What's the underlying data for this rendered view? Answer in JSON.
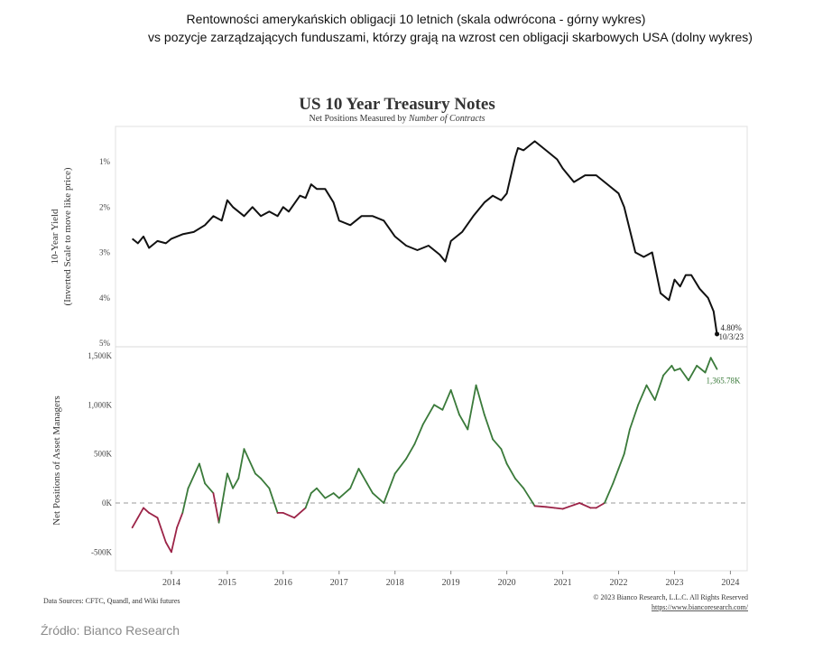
{
  "caption": {
    "line1": "Rentowności amerykańskich obligacji 10 letnich (skala odwrócona - górny wykres)",
    "line2": "vs pozycje zarządzających funduszami, którzy grają na wzrost cen obligacji skarbowych USA (dolny wykres)"
  },
  "source_note": "Źródło: Bianco Research",
  "footer": {
    "data_sources": "Data Sources: CFTC, Quandl, and Wiki futures",
    "copyright": "© 2023 Bianco Research, L.L.C. All Rights Reserved",
    "url": "https://www.biancoresearch.com/"
  },
  "colors": {
    "yield_line": "#111111",
    "positive": "#3a7a3a",
    "negative": "#9c2448",
    "zero_line": "#9a9a9a"
  },
  "chart_data": [
    {
      "type": "line",
      "title": "US 10 Year Treasury Notes",
      "subtitle_prefix": "Net Positions Measured by ",
      "subtitle_emph": "Number of Contracts",
      "ylabel_line1": "10-Year Yield",
      "ylabel_line2": "(Inverted Scale to move like price)",
      "y_inverted": true,
      "ylim": [
        5.0,
        0.5
      ],
      "y_ticks": [
        {
          "v": 1,
          "label": "1%"
        },
        {
          "v": 2,
          "label": "2%"
        },
        {
          "v": 3,
          "label": "3%"
        },
        {
          "v": 4,
          "label": "4%"
        },
        {
          "v": 5,
          "label": "5%"
        }
      ],
      "end_label_value": "4.80%",
      "end_label_date": "10/3/23",
      "x": [
        2013.3,
        2013.4,
        2013.5,
        2013.6,
        2013.75,
        2013.9,
        2014.0,
        2014.2,
        2014.4,
        2014.6,
        2014.75,
        2014.9,
        2015.0,
        2015.1,
        2015.3,
        2015.45,
        2015.6,
        2015.75,
        2015.9,
        2016.0,
        2016.1,
        2016.3,
        2016.4,
        2016.5,
        2016.6,
        2016.75,
        2016.9,
        2017.0,
        2017.2,
        2017.4,
        2017.6,
        2017.8,
        2018.0,
        2018.2,
        2018.4,
        2018.6,
        2018.8,
        2018.9,
        2019.0,
        2019.2,
        2019.4,
        2019.6,
        2019.75,
        2019.9,
        2020.0,
        2020.15,
        2020.2,
        2020.3,
        2020.5,
        2020.6,
        2020.75,
        2020.9,
        2021.0,
        2021.2,
        2021.4,
        2021.6,
        2021.8,
        2022.0,
        2022.1,
        2022.2,
        2022.3,
        2022.45,
        2022.6,
        2022.75,
        2022.9,
        2023.0,
        2023.1,
        2023.2,
        2023.3,
        2023.45,
        2023.6,
        2023.7,
        2023.76
      ],
      "y": [
        2.7,
        2.8,
        2.65,
        2.9,
        2.75,
        2.8,
        2.7,
        2.6,
        2.55,
        2.4,
        2.2,
        2.3,
        1.85,
        2.0,
        2.2,
        2.0,
        2.2,
        2.1,
        2.2,
        2.0,
        2.1,
        1.75,
        1.8,
        1.5,
        1.6,
        1.6,
        1.9,
        2.3,
        2.4,
        2.2,
        2.2,
        2.3,
        2.65,
        2.85,
        2.95,
        2.85,
        3.05,
        3.2,
        2.75,
        2.55,
        2.2,
        1.9,
        1.75,
        1.85,
        1.7,
        0.9,
        0.7,
        0.75,
        0.55,
        0.65,
        0.8,
        0.95,
        1.15,
        1.45,
        1.3,
        1.3,
        1.5,
        1.7,
        2.0,
        2.5,
        3.0,
        3.1,
        3.0,
        3.9,
        4.05,
        3.6,
        3.75,
        3.5,
        3.5,
        3.8,
        4.0,
        4.3,
        4.8
      ]
    },
    {
      "type": "line",
      "ylabel": "Net Positions of Asset Managers",
      "ylim": [
        -700,
        1500
      ],
      "y_ticks": [
        {
          "v": 1500,
          "label": "1,500K"
        },
        {
          "v": 1000,
          "label": "1,000K"
        },
        {
          "v": 500,
          "label": "500K"
        },
        {
          "v": 0,
          "label": "0K"
        },
        {
          "v": -500,
          "label": "-500K"
        }
      ],
      "x_ticks": [
        "2014",
        "2015",
        "2016",
        "2017",
        "2018",
        "2019",
        "2020",
        "2021",
        "2022",
        "2023",
        "2024"
      ],
      "xlim": [
        2013.0,
        2024.3
      ],
      "end_label": "1,365.78K",
      "x": [
        2013.3,
        2013.4,
        2013.5,
        2013.6,
        2013.75,
        2013.9,
        2014.0,
        2014.1,
        2014.2,
        2014.3,
        2014.5,
        2014.6,
        2014.75,
        2014.85,
        2015.0,
        2015.1,
        2015.2,
        2015.3,
        2015.5,
        2015.6,
        2015.75,
        2015.9,
        2016.0,
        2016.2,
        2016.4,
        2016.5,
        2016.6,
        2016.75,
        2016.9,
        2017.0,
        2017.2,
        2017.35,
        2017.5,
        2017.6,
        2017.8,
        2017.9,
        2018.0,
        2018.2,
        2018.35,
        2018.5,
        2018.7,
        2018.85,
        2019.0,
        2019.15,
        2019.3,
        2019.45,
        2019.6,
        2019.75,
        2019.9,
        2020.0,
        2020.15,
        2020.3,
        2020.5,
        2020.7,
        2020.85,
        2021.0,
        2021.1,
        2021.3,
        2021.5,
        2021.6,
        2021.75,
        2021.9,
        2022.0,
        2022.1,
        2022.2,
        2022.35,
        2022.5,
        2022.65,
        2022.8,
        2022.95,
        2023.0,
        2023.1,
        2023.25,
        2023.4,
        2023.55,
        2023.65,
        2023.76
      ],
      "y": [
        -250,
        -150,
        -50,
        -100,
        -150,
        -400,
        -500,
        -250,
        -100,
        150,
        400,
        200,
        100,
        -200,
        300,
        150,
        250,
        550,
        300,
        250,
        150,
        -100,
        -100,
        -150,
        -50,
        100,
        150,
        50,
        100,
        50,
        150,
        350,
        200,
        100,
        0,
        150,
        300,
        450,
        600,
        800,
        1000,
        950,
        1150,
        900,
        750,
        1200,
        900,
        650,
        550,
        400,
        250,
        150,
        -30,
        -40,
        -50,
        -60,
        -40,
        0,
        -50,
        -50,
        0,
        200,
        350,
        500,
        750,
        1000,
        1200,
        1050,
        1300,
        1400,
        1350,
        1370,
        1250,
        1400,
        1330,
        1480,
        1365
      ]
    }
  ]
}
